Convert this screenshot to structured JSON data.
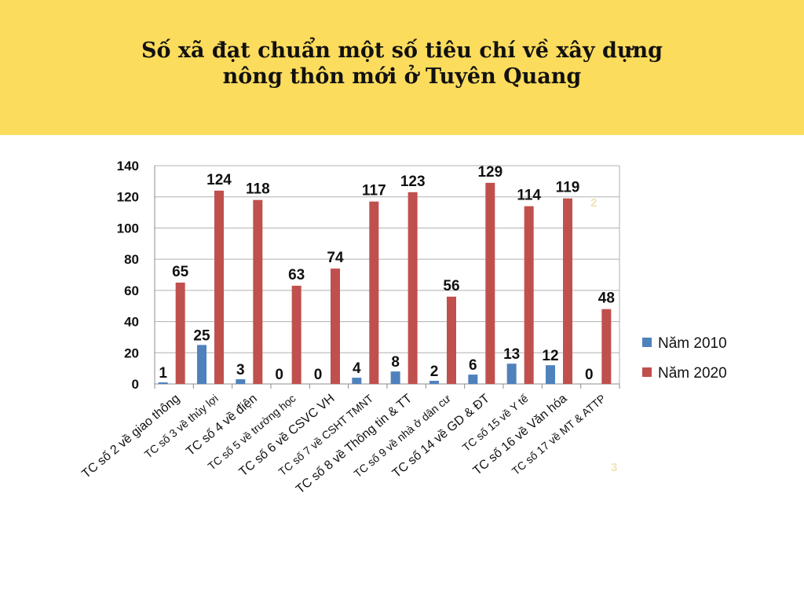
{
  "title": {
    "line1": "Số xã đạt chuẩn một số tiêu chí về xây dựng",
    "line2": "nông thôn mới ở Tuyên Quang"
  },
  "stray_marks": [
    "2",
    "3"
  ],
  "colors": {
    "banner": "#fcdc5c",
    "series_2010": "#4f81bd",
    "series_2020": "#c0504d"
  },
  "chart_data": {
    "type": "bar",
    "categories": [
      "TC số 2 về giao thông",
      "TC số 3 về thủy lợi",
      "TC số 4 về điện",
      "TC số 5 về trường học",
      "TC số 6 về CSVC VH",
      "TC số 7 về CSHT TMNT",
      "TC số 8 về Thông tin & TT",
      "TC số 9 về nhà ở dân cư",
      "TC số 14 về GD & ĐT",
      "TC số 15 về Y tế",
      "TC số 16 về Văn hóa",
      "TC số 17 về MT & ATTP"
    ],
    "series": [
      {
        "name": "Năm 2010",
        "values": [
          1,
          25,
          3,
          0,
          0,
          4,
          8,
          2,
          6,
          13,
          12,
          0
        ]
      },
      {
        "name": "Năm 2020",
        "values": [
          65,
          124,
          118,
          63,
          74,
          117,
          123,
          56,
          129,
          114,
          119,
          48
        ]
      }
    ],
    "yticks": [
      0,
      20,
      40,
      60,
      80,
      100,
      120,
      140
    ],
    "ylim": [
      0,
      140
    ],
    "grid": true,
    "legend": "right"
  }
}
